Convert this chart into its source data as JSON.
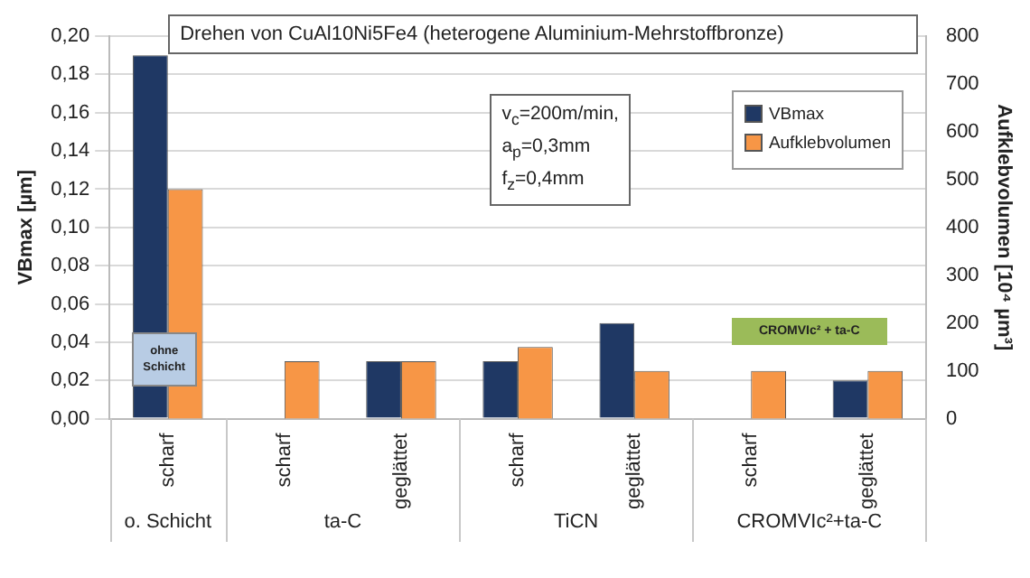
{
  "chart_data": {
    "type": "bar",
    "title": "Drehen von CuAl10Ni5Fe4 (heterogene Aluminium-Mehrstoffbronze)",
    "categories": [
      "scharf",
      "scharf",
      "geglättet",
      "scharf",
      "geglättet",
      "scharf",
      "geglättet"
    ],
    "series": [
      {
        "name": "VBmax",
        "color": "#1f3864",
        "values": [
          0.19,
          null,
          0.03,
          0.03,
          0.05,
          null,
          0.02
        ]
      },
      {
        "name": "Aufklebvolumen",
        "color": "#f79646",
        "axis": "y2",
        "values": [
          480,
          120,
          120,
          150,
          100,
          100,
          100
        ]
      }
    ],
    "ylabel": "VBmax [µm]",
    "y2label": "Aufklebvolumen [10⁴ µm³]",
    "ylim": [
      0,
      0.2
    ],
    "yticks": [
      {
        "value": 0,
        "label": "0,00"
      },
      {
        "value": 0.02,
        "label": "0,02"
      },
      {
        "value": 0.04,
        "label": "0,04"
      },
      {
        "value": 0.06,
        "label": "0,06"
      },
      {
        "value": 0.08,
        "label": "0,08"
      },
      {
        "value": 0.1,
        "label": "0,10"
      },
      {
        "value": 0.12,
        "label": "0,12"
      },
      {
        "value": 0.14,
        "label": "0,14"
      },
      {
        "value": 0.16,
        "label": "0,16"
      },
      {
        "value": 0.18,
        "label": "0,18"
      },
      {
        "value": 0.2,
        "label": "0,20"
      }
    ],
    "y2lim": [
      0,
      800
    ],
    "y2ticks": [
      0,
      100,
      200,
      300,
      400,
      500,
      600,
      700,
      800
    ],
    "annotations": [
      "o. Schicht",
      "ta-C",
      "TiCN",
      "CROMVIc²+ta-C",
      "v$_{c}$=200m/min,",
      "a$_{p}$=0,3mm",
      "f$_{z}$=0,4mm",
      "ohne Schicht",
      "CROMVIc² + ta-C"
    ],
    "grid": "y",
    "legend": "top right"
  }
}
